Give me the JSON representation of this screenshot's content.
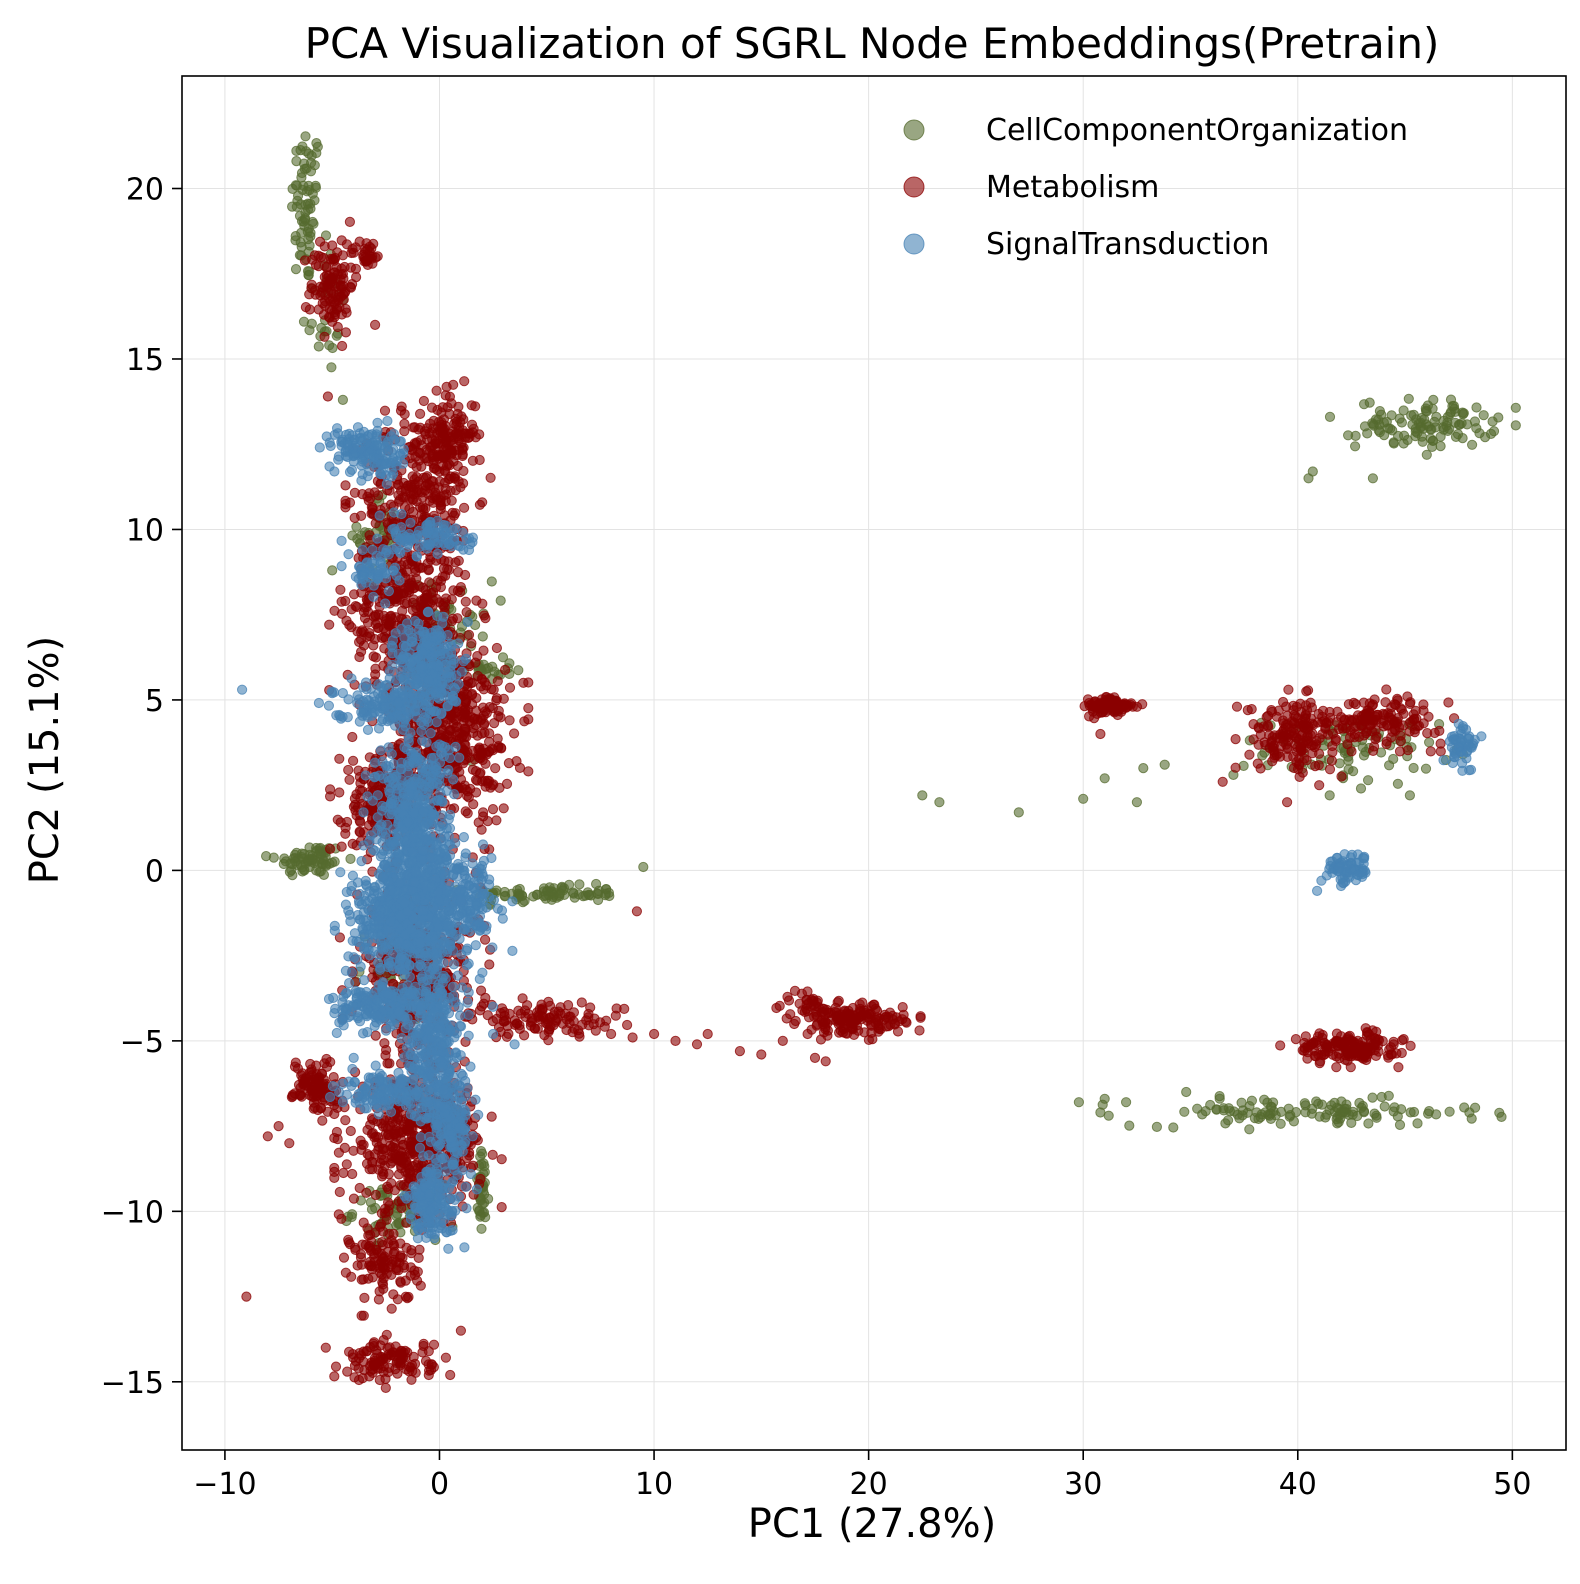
{
  "chart_data": {
    "type": "scatter",
    "title": "PCA Visualization of SGRL Node Embeddings(Pretrain)",
    "xlabel": "PC1 (27.8%)",
    "ylabel": "PC2 (15.1%)",
    "xlim": [
      -12,
      52.5
    ],
    "ylim": [
      -17,
      23.3
    ],
    "xticks": [
      -10,
      0,
      10,
      20,
      30,
      40,
      50
    ],
    "yticks": [
      -15,
      -10,
      -5,
      0,
      5,
      10,
      15,
      20
    ],
    "grid": true,
    "legend_position": "top-right",
    "series": [
      {
        "name": "CellComponentOrganization",
        "color": "#556b2f",
        "clusters": [
          {
            "cx": -6.2,
            "cy": 19.5,
            "sx": 0.35,
            "sy": 1.2,
            "n": 70
          },
          {
            "cx": -5.4,
            "cy": 16.5,
            "sx": 0.5,
            "sy": 1.0,
            "n": 25
          },
          {
            "cx": -6.0,
            "cy": 0.3,
            "sx": 0.8,
            "sy": 0.25,
            "n": 70
          },
          {
            "cx": 5.0,
            "cy": -0.7,
            "sx": 1.7,
            "sy": 0.12,
            "n": 80
          },
          {
            "cx": 2.0,
            "cy": 5.9,
            "sx": 0.7,
            "sy": 0.15,
            "n": 25
          },
          {
            "cx": -2.8,
            "cy": 9.8,
            "sx": 0.5,
            "sy": 0.6,
            "n": 40
          },
          {
            "cx": 0.5,
            "cy": 7.5,
            "sx": 1.0,
            "sy": 0.5,
            "n": 40
          },
          {
            "cx": -2.0,
            "cy": -2.8,
            "sx": 1.0,
            "sy": 0.6,
            "n": 40
          },
          {
            "cx": -2.0,
            "cy": -10.0,
            "sx": 1.0,
            "sy": 0.4,
            "n": 70
          },
          {
            "cx": 2.0,
            "cy": -9.5,
            "sx": 0.15,
            "sy": 0.6,
            "n": 40
          },
          {
            "cx": 46.0,
            "cy": 13.1,
            "sx": 1.6,
            "sy": 0.35,
            "n": 110
          },
          {
            "cx": 42.5,
            "cy": 3.5,
            "sx": 2.0,
            "sy": 0.5,
            "n": 80
          },
          {
            "cx": 40.5,
            "cy": -7.1,
            "sx": 4.0,
            "sy": 0.2,
            "n": 120
          }
        ],
        "points": [
          [
            40.5,
            11.5
          ],
          [
            40.7,
            11.7
          ],
          [
            41.5,
            13.3
          ],
          [
            43.5,
            11.5
          ],
          [
            22.5,
            2.2
          ],
          [
            23.3,
            2.0
          ],
          [
            27.0,
            1.7
          ],
          [
            30.0,
            2.1
          ],
          [
            31.0,
            2.7
          ],
          [
            32.5,
            2.0
          ],
          [
            32.8,
            3.0
          ],
          [
            33.8,
            3.1
          ],
          [
            37.0,
            2.8
          ],
          [
            9.5,
            0.1
          ],
          [
            7.3,
            -0.4
          ],
          [
            -5.0,
            8.8
          ],
          [
            -4.5,
            13.8
          ],
          [
            -2.0,
            6.5
          ],
          [
            1.5,
            3.2
          ],
          [
            29.8,
            -6.8
          ],
          [
            30.8,
            -7.1
          ],
          [
            31.0,
            -6.7
          ],
          [
            32.0,
            -6.8
          ],
          [
            34.8,
            -6.5
          ],
          [
            48.0,
            -7.1
          ]
        ]
      },
      {
        "name": "Metabolism",
        "color": "#8b0000",
        "clusters": [
          {
            "cx": -5.0,
            "cy": 17.2,
            "sx": 0.5,
            "sy": 0.7,
            "n": 110
          },
          {
            "cx": -3.4,
            "cy": 18.1,
            "sx": 0.4,
            "sy": 0.2,
            "n": 30
          },
          {
            "cx": -1.0,
            "cy": 11.0,
            "sx": 1.3,
            "sy": 1.2,
            "n": 300
          },
          {
            "cx": 0.5,
            "cy": 12.8,
            "sx": 0.6,
            "sy": 0.6,
            "n": 120
          },
          {
            "cx": -1.5,
            "cy": 7.5,
            "sx": 1.4,
            "sy": 1.2,
            "n": 400
          },
          {
            "cx": 0.5,
            "cy": 4.0,
            "sx": 1.4,
            "sy": 1.3,
            "n": 500
          },
          {
            "cx": -2.5,
            "cy": 2.0,
            "sx": 1.0,
            "sy": 0.8,
            "n": 250
          },
          {
            "cx": -1.0,
            "cy": -3.0,
            "sx": 1.4,
            "sy": 1.3,
            "n": 400
          },
          {
            "cx": -1.0,
            "cy": -8.0,
            "sx": 1.5,
            "sy": 0.9,
            "n": 500
          },
          {
            "cx": -5.8,
            "cy": -6.3,
            "sx": 0.5,
            "sy": 0.4,
            "n": 100
          },
          {
            "cx": -2.5,
            "cy": -11.5,
            "sx": 0.8,
            "sy": 0.6,
            "n": 120
          },
          {
            "cx": -2.3,
            "cy": -14.4,
            "sx": 1.0,
            "sy": 0.3,
            "n": 110
          },
          {
            "cx": 5.0,
            "cy": -4.4,
            "sx": 1.8,
            "sy": 0.25,
            "n": 110
          },
          {
            "cx": 19.3,
            "cy": -4.4,
            "sx": 1.2,
            "sy": 0.22,
            "n": 160
          },
          {
            "cx": 17.0,
            "cy": -3.9,
            "sx": 0.5,
            "sy": 0.2,
            "n": 30
          },
          {
            "cx": 31.3,
            "cy": 4.8,
            "sx": 0.6,
            "sy": 0.15,
            "n": 90
          },
          {
            "cx": 39.7,
            "cy": 4.0,
            "sx": 1.0,
            "sy": 0.5,
            "n": 160
          },
          {
            "cx": 43.8,
            "cy": 4.4,
            "sx": 1.5,
            "sy": 0.35,
            "n": 150
          },
          {
            "cx": 42.3,
            "cy": -5.2,
            "sx": 1.2,
            "sy": 0.22,
            "n": 160
          }
        ],
        "points": [
          [
            -5.2,
            13.9
          ],
          [
            -3.0,
            16.0
          ],
          [
            9.2,
            -1.2
          ],
          [
            8.0,
            -4.8
          ],
          [
            9.0,
            -4.9
          ],
          [
            10.0,
            -4.8
          ],
          [
            11.0,
            -5.0
          ],
          [
            12.0,
            -5.1
          ],
          [
            12.5,
            -4.8
          ],
          [
            14.0,
            -5.3
          ],
          [
            15.0,
            -5.4
          ],
          [
            16.0,
            -5.0
          ],
          [
            17.5,
            -5.5
          ],
          [
            18.0,
            -5.6
          ],
          [
            -9.0,
            -12.5
          ],
          [
            -5.3,
            -14.0
          ],
          [
            -4.3,
            -14.7
          ],
          [
            -0.5,
            -14.8
          ],
          [
            0.5,
            -14.8
          ],
          [
            1.0,
            -13.5
          ],
          [
            30.8,
            4.0
          ],
          [
            39.5,
            2.0
          ],
          [
            41.0,
            2.5
          ],
          [
            36.5,
            2.6
          ],
          [
            -8.0,
            -7.8
          ],
          [
            -7.0,
            -8.0
          ],
          [
            -7.5,
            -7.5
          ]
        ]
      },
      {
        "name": "SignalTransduction",
        "color": "#4682b4",
        "clusters": [
          {
            "cx": -3.5,
            "cy": 12.4,
            "sx": 0.8,
            "sy": 0.3,
            "n": 120
          },
          {
            "cx": -2.7,
            "cy": 11.8,
            "sx": 0.5,
            "sy": 0.3,
            "n": 30
          },
          {
            "cx": -0.3,
            "cy": 9.8,
            "sx": 1.0,
            "sy": 0.3,
            "n": 90
          },
          {
            "cx": -3.0,
            "cy": 8.8,
            "sx": 0.6,
            "sy": 0.4,
            "n": 60
          },
          {
            "cx": -0.5,
            "cy": 6.0,
            "sx": 0.7,
            "sy": 0.7,
            "n": 250
          },
          {
            "cx": -2.5,
            "cy": 4.9,
            "sx": 1.2,
            "sy": 0.3,
            "n": 150
          },
          {
            "cx": -1.2,
            "cy": 1.0,
            "sx": 0.9,
            "sy": 1.5,
            "n": 600
          },
          {
            "cx": -1.5,
            "cy": -1.5,
            "sx": 1.3,
            "sy": 0.8,
            "n": 500
          },
          {
            "cx": 0.8,
            "cy": -0.8,
            "sx": 1.0,
            "sy": 0.6,
            "n": 200
          },
          {
            "cx": -2.5,
            "cy": -4.0,
            "sx": 1.2,
            "sy": 0.3,
            "n": 200
          },
          {
            "cx": -0.2,
            "cy": -5.0,
            "sx": 0.6,
            "sy": 1.3,
            "n": 300
          },
          {
            "cx": -2.5,
            "cy": -6.5,
            "sx": 1.0,
            "sy": 0.3,
            "n": 120
          },
          {
            "cx": 0.5,
            "cy": -7.5,
            "sx": 0.6,
            "sy": 0.8,
            "n": 150
          },
          {
            "cx": -0.3,
            "cy": -9.8,
            "sx": 0.6,
            "sy": 0.5,
            "n": 150
          },
          {
            "cx": 42.4,
            "cy": 0.05,
            "sx": 0.5,
            "sy": 0.22,
            "n": 70
          },
          {
            "cx": 47.7,
            "cy": 3.7,
            "sx": 0.35,
            "sy": 0.3,
            "n": 50
          }
        ],
        "points": [
          [
            -9.2,
            5.3
          ],
          [
            -5.0,
            5.2
          ],
          [
            -4.5,
            5.2
          ],
          [
            3.5,
            -5.1
          ],
          [
            2.5,
            -4.8
          ],
          [
            2.5,
            -4.0
          ],
          [
            2.0,
            -3.0
          ],
          [
            -4.0,
            -5.5
          ],
          [
            -4.5,
            -6.8
          ],
          [
            -3.8,
            13.0
          ],
          [
            40.9,
            -0.6
          ],
          [
            47.5,
            4.3
          ]
        ]
      }
    ]
  }
}
